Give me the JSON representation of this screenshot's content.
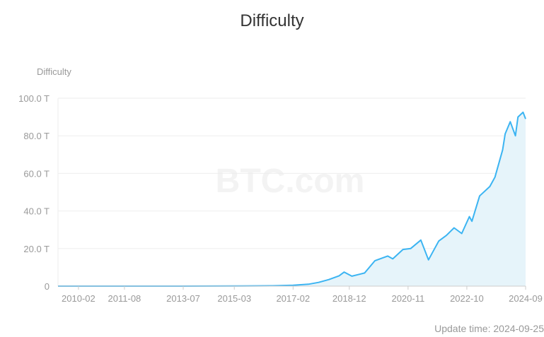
{
  "chart_data": {
    "type": "area",
    "title": "Difficulty",
    "ylabel": "Difficulty",
    "xlabel": "",
    "ylim": [
      0,
      100
    ],
    "y_unit": "T",
    "y_ticks": [
      "0",
      "20.0 T",
      "40.0 T",
      "60.0 T",
      "80.0 T",
      "100.0 T"
    ],
    "x_ticks": [
      "2010-02",
      "2011-08",
      "2013-07",
      "2015-03",
      "2017-02",
      "2018-12",
      "2020-11",
      "2022-10",
      "2024-09"
    ],
    "grid": true,
    "watermark": "BTC.com",
    "line_color": "#3bb4f2",
    "fill_color": "#e6f4fa",
    "series": [
      {
        "x": [
          "2009-06",
          "2012-01",
          "2014-06",
          "2015-06",
          "2016-06",
          "2017-02",
          "2017-08",
          "2017-12",
          "2018-04",
          "2018-08",
          "2018-10",
          "2019-01",
          "2019-06",
          "2019-10",
          "2020-03",
          "2020-05",
          "2020-09",
          "2020-12",
          "2021-04",
          "2021-07",
          "2021-11",
          "2022-02",
          "2022-05",
          "2022-08",
          "2022-11",
          "2022-12",
          "2023-03",
          "2023-07",
          "2023-09",
          "2023-12",
          "2024-01",
          "2024-03",
          "2024-05",
          "2024-06",
          "2024-08",
          "2024-09"
        ],
        "y": [
          0,
          0,
          0.05,
          0.1,
          0.2,
          0.5,
          1,
          2,
          3.5,
          5.5,
          7.5,
          5.3,
          7,
          13.5,
          16,
          14.5,
          19.5,
          20,
          24.5,
          14,
          24,
          27,
          31,
          28,
          37,
          34.5,
          48,
          53,
          58,
          72.5,
          81,
          87.5,
          80,
          90,
          92.5,
          89
        ]
      }
    ]
  },
  "footer": {
    "update_label": "Update time:",
    "update_date": "2024-09-25"
  }
}
